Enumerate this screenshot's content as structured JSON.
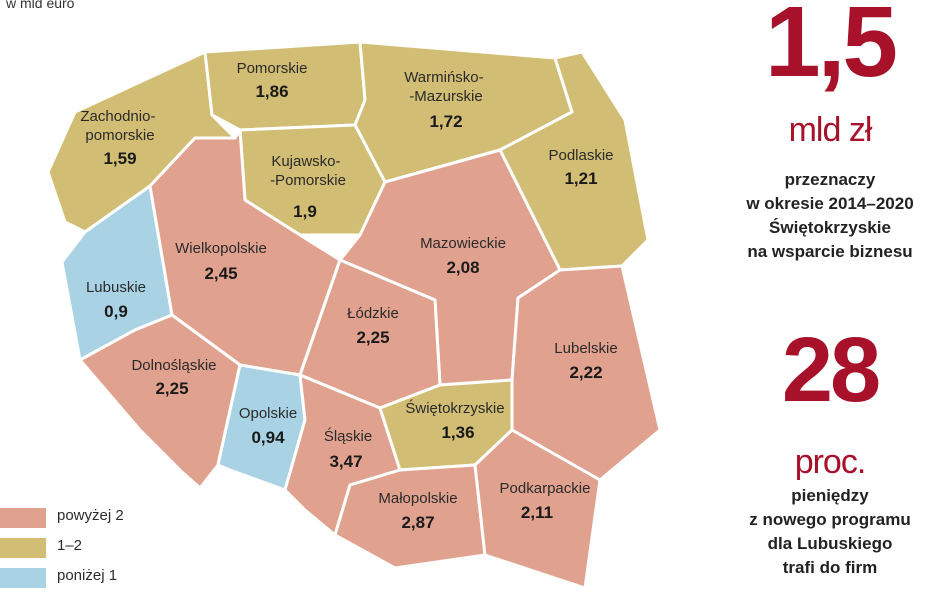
{
  "map": {
    "unit_label": "w mld euro",
    "regions": [
      {
        "id": "zachodniopomorskie",
        "name_lines": [
          "Zachodnio-",
          "pomorskie"
        ],
        "value": "1,59",
        "category": "mid"
      },
      {
        "id": "pomorskie",
        "name_lines": [
          "Pomorskie"
        ],
        "value": "1,86",
        "category": "mid"
      },
      {
        "id": "warminsko-mazurskie",
        "name_lines": [
          "Warmińsko-",
          "-Mazurskie"
        ],
        "value": "1,72",
        "category": "mid"
      },
      {
        "id": "podlaskie",
        "name_lines": [
          "Podlaskie"
        ],
        "value": "1,21",
        "category": "mid"
      },
      {
        "id": "kujawsko-pomorskie",
        "name_lines": [
          "Kujawsko-",
          "-Pomorskie"
        ],
        "value": "1,9",
        "category": "mid"
      },
      {
        "id": "lubuskie",
        "name_lines": [
          "Lubuskie"
        ],
        "value": "0,9",
        "category": "low"
      },
      {
        "id": "wielkopolskie",
        "name_lines": [
          "Wielkopolskie"
        ],
        "value": "2,45",
        "category": "high"
      },
      {
        "id": "mazowieckie",
        "name_lines": [
          "Mazowieckie"
        ],
        "value": "2,08",
        "category": "high"
      },
      {
        "id": "lodzkie",
        "name_lines": [
          "Łódzkie"
        ],
        "value": "2,25",
        "category": "high"
      },
      {
        "id": "lubelskie",
        "name_lines": [
          "Lubelskie"
        ],
        "value": "2,22",
        "category": "high"
      },
      {
        "id": "dolnoslaskie",
        "name_lines": [
          "Dolnośląskie"
        ],
        "value": "2,25",
        "category": "high"
      },
      {
        "id": "opolskie",
        "name_lines": [
          "Opolskie"
        ],
        "value": "0,94",
        "category": "low"
      },
      {
        "id": "slaskie",
        "name_lines": [
          "Śląskie"
        ],
        "value": "3,47",
        "category": "high"
      },
      {
        "id": "swietokrzyskie",
        "name_lines": [
          "Świętokrzyskie"
        ],
        "value": "1,36",
        "category": "mid"
      },
      {
        "id": "malopolskie",
        "name_lines": [
          "Małopolskie"
        ],
        "value": "2,87",
        "category": "high"
      },
      {
        "id": "podkarpackie",
        "name_lines": [
          "Podkarpackie"
        ],
        "value": "2,11",
        "category": "high"
      }
    ],
    "colors": {
      "high": "#e0a28e",
      "mid": "#d2bd74",
      "low": "#a9d2e4"
    }
  },
  "legend": [
    {
      "label": "powyżej 2",
      "color": "#e0a28e"
    },
    {
      "label": "1–2",
      "color": "#d2bd74"
    },
    {
      "label": "poniżej 1",
      "color": "#a9d2e4"
    }
  ],
  "sidebar": {
    "stat1": {
      "value": "1,5",
      "unit": "mld zł",
      "lines": [
        "przeznaczy",
        "w okresie 2014–2020",
        "Świętokrzyskie",
        "na wsparcie biznesu"
      ]
    },
    "stat2": {
      "value": "28",
      "unit": "proc.",
      "lines": [
        "pieniędzy",
        "z nowego programu",
        "dla Lubuskiego",
        "trafi do firm"
      ]
    },
    "accent_color": "#a8112a"
  }
}
